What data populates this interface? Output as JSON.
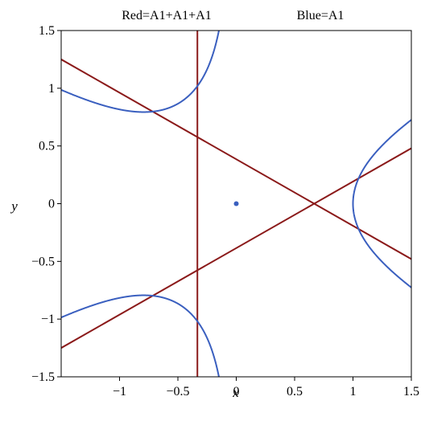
{
  "chart_data": {
    "type": "line",
    "titles": [
      "Red=A1+A1+A1",
      "Blue=A1"
    ],
    "xlabel": "x",
    "ylabel": "y",
    "xlim": [
      -1.5,
      1.5
    ],
    "ylim": [
      -1.5,
      1.5
    ],
    "x_ticks": [
      {
        "value": -1,
        "label": "−1"
      },
      {
        "value": -0.5,
        "label": "−0.5"
      },
      {
        "value": 0,
        "label": "0"
      },
      {
        "value": 0.5,
        "label": "0.5"
      },
      {
        "value": 1,
        "label": "1"
      },
      {
        "value": 1.5,
        "label": "1.5"
      }
    ],
    "y_ticks": [
      {
        "value": 1.5,
        "label": "1.5"
      },
      {
        "value": 1,
        "label": "1"
      },
      {
        "value": 0.5,
        "label": "0.5"
      },
      {
        "value": 0,
        "label": "0"
      },
      {
        "value": -0.5,
        "label": "−0.5"
      },
      {
        "value": -1,
        "label": "−1"
      },
      {
        "value": -1.5,
        "label": "−1.5"
      }
    ],
    "colors": {
      "red": "#8b1a1a",
      "blue": "#3a5fbf"
    },
    "red_lines": [
      {
        "p1": [
          -1.5,
          1.25
        ],
        "p2": [
          1.5,
          -0.48
        ]
      },
      {
        "p1": [
          -1.5,
          -1.25
        ],
        "p2": [
          1.5,
          0.48
        ]
      },
      {
        "p1": [
          -0.333,
          1.5
        ],
        "p2": [
          -0.333,
          -1.5
        ]
      }
    ],
    "blue_curve": {
      "equation": "x^3 - 3*x*y^2 - 1 = 0",
      "rendered_range": [
        -1.5,
        1.5
      ]
    },
    "blue_point": [
      0,
      0
    ]
  }
}
